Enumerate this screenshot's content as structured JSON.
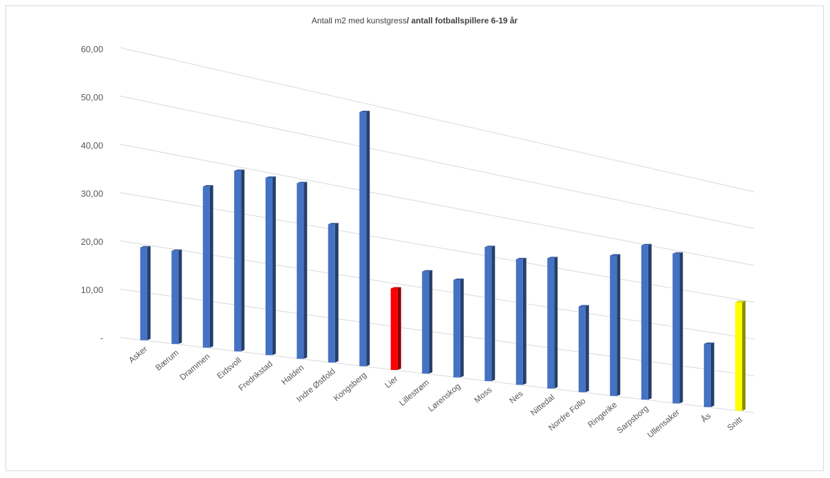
{
  "chart_data": {
    "type": "bar",
    "title_normal": "Antall m2 med kunstgress",
    "title_bold": "/ antall fotballspillere 6-19 år",
    "xlabel": "",
    "ylabel": "",
    "ylim": [
      0,
      60
    ],
    "y_ticks": [
      "-",
      "10,00",
      "20,00",
      "30,00",
      "40,00",
      "50,00",
      "60,00"
    ],
    "grid": true,
    "categories": [
      "Asker",
      "Bærum",
      "Drammen",
      "Eidsvoll",
      "Fredrikstad",
      "Halden",
      "Indre Østfold",
      "Kongsberg",
      "Lier",
      "Lillestrøm",
      "Lørenskog",
      "Moss",
      "Nes",
      "Nittedal",
      "Nordre Follo",
      "Ringerike",
      "Sarpsborg",
      "Ullensaker",
      "Ås",
      "Snitt"
    ],
    "values": [
      19.4,
      19.7,
      34.5,
      39.1,
      38.9,
      39.0,
      31.1,
      57.9,
      18.8,
      23.9,
      23.1,
      32.2,
      30.6,
      32.2,
      21.5,
      35.7,
      39.8,
      39.2,
      16.8,
      29.3
    ],
    "colors": [
      "#4472c4",
      "#4472c4",
      "#4472c4",
      "#4472c4",
      "#4472c4",
      "#4472c4",
      "#4472c4",
      "#4472c4",
      "#ff0000",
      "#4472c4",
      "#4472c4",
      "#4472c4",
      "#4472c4",
      "#4472c4",
      "#4472c4",
      "#4472c4",
      "#4472c4",
      "#4472c4",
      "#4472c4",
      "#ffff00"
    ]
  }
}
